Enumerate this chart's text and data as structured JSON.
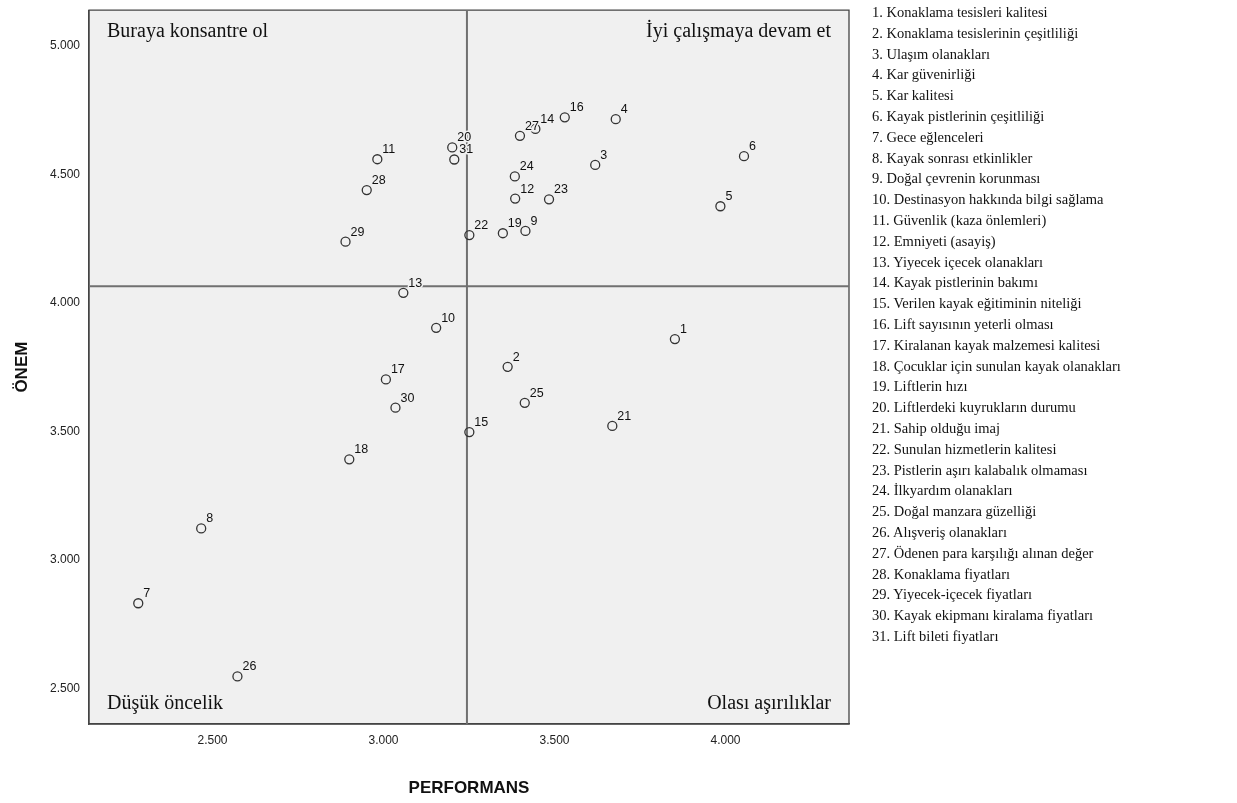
{
  "chart_data": {
    "type": "scatter",
    "xlabel": "PERFORMANS",
    "ylabel": "ÖNEM",
    "x": [
      3.852,
      3.363,
      3.619,
      3.679,
      3.985,
      4.054,
      2.283,
      2.467,
      3.415,
      3.154,
      2.982,
      3.385,
      3.058,
      3.444,
      3.251,
      3.53,
      3.007,
      2.9,
      3.349,
      3.201,
      3.669,
      3.251,
      3.484,
      3.384,
      3.413,
      2.573,
      3.399,
      2.951,
      2.889,
      3.035,
      3.207
    ],
    "series": [
      {
        "color": "#333333",
        "values": [
          3.86,
          3.752,
          4.538,
          4.716,
          4.377,
          4.572,
          2.832,
          3.123,
          4.281,
          3.904,
          4.56,
          4.407,
          4.04,
          4.678,
          3.498,
          4.723,
          3.703,
          3.392,
          4.272,
          4.606,
          3.522,
          4.265,
          4.404,
          4.493,
          3.612,
          2.547,
          4.651,
          4.44,
          4.239,
          3.593,
          4.559
        ]
      }
    ],
    "marker": "circle",
    "grid": false,
    "legend": false,
    "xlim": [
      2.139,
      4.361
    ],
    "ylim": [
      2.362,
      5.14
    ],
    "xticks": [
      {
        "value": 2.5,
        "label": "2.500"
      },
      {
        "value": 3,
        "label": "3.000"
      },
      {
        "value": 3.5,
        "label": "3.500"
      },
      {
        "value": 4,
        "label": "4.000"
      }
    ],
    "yticks": [
      {
        "value": 2.5,
        "label": "2.500"
      },
      {
        "value": 3,
        "label": "3.000"
      },
      {
        "value": 3.5,
        "label": "3.500"
      },
      {
        "value": 4,
        "label": "4.000"
      },
      {
        "value": 4.5,
        "label": "4.500"
      },
      {
        "value": 5,
        "label": "5.000"
      }
    ],
    "ref_lines": [
      {
        "axis": "x",
        "value": 3.244,
        "color": "#707070"
      },
      {
        "axis": "y",
        "value": 4.066,
        "color": "#707070"
      }
    ],
    "annotations": [
      "Buraya konsantre ol",
      "İyi çalışmaya devam et",
      "Düşük öncelik",
      "Olası aşırılıklar",
      {
        "text": "1",
        "x": 3.852,
        "y": 3.86
      },
      {
        "text": "2",
        "x": 3.363,
        "y": 3.752
      },
      {
        "text": "3",
        "x": 3.619,
        "y": 4.538
      },
      {
        "text": "4",
        "x": 3.679,
        "y": 4.716
      },
      {
        "text": "5",
        "x": 3.985,
        "y": 4.377
      },
      {
        "text": "6",
        "x": 4.054,
        "y": 4.572
      },
      {
        "text": "7",
        "x": 2.283,
        "y": 2.832
      },
      {
        "text": "8",
        "x": 2.467,
        "y": 3.123
      },
      {
        "text": "9",
        "x": 3.415,
        "y": 4.281
      },
      {
        "text": "10",
        "x": 3.154,
        "y": 3.904
      },
      {
        "text": "11",
        "x": 2.982,
        "y": 4.56
      },
      {
        "text": "12",
        "x": 3.385,
        "y": 4.407
      },
      {
        "text": "13",
        "x": 3.058,
        "y": 4.04
      },
      {
        "text": "14",
        "x": 3.444,
        "y": 4.678
      },
      {
        "text": "15",
        "x": 3.251,
        "y": 3.498
      },
      {
        "text": "16",
        "x": 3.53,
        "y": 4.723
      },
      {
        "text": "17",
        "x": 3.007,
        "y": 3.703
      },
      {
        "text": "18",
        "x": 2.9,
        "y": 3.392
      },
      {
        "text": "19",
        "x": 3.349,
        "y": 4.272
      },
      {
        "text": "20",
        "x": 3.201,
        "y": 4.606
      },
      {
        "text": "21",
        "x": 3.669,
        "y": 3.522
      },
      {
        "text": "22",
        "x": 3.251,
        "y": 4.265
      },
      {
        "text": "23",
        "x": 3.484,
        "y": 4.404
      },
      {
        "text": "24",
        "x": 3.384,
        "y": 4.493
      },
      {
        "text": "25",
        "x": 3.413,
        "y": 3.612
      },
      {
        "text": "26",
        "x": 2.573,
        "y": 2.547
      },
      {
        "text": "27",
        "x": 3.399,
        "y": 4.651
      },
      {
        "text": "28",
        "x": 2.951,
        "y": 4.44
      },
      {
        "text": "29",
        "x": 2.889,
        "y": 4.239
      },
      {
        "text": "30",
        "x": 3.035,
        "y": 3.593
      },
      {
        "text": "31",
        "x": 3.207,
        "y": 4.559
      },
      "1. Konaklama tesisleri kalitesi",
      "2. Konaklama tesislerinin çeşitliliği",
      "3. Ulaşım olanakları",
      "4. Kar güvenirliği",
      "5. Kar kalitesi",
      "6. Kayak pistlerinin çeşitliliği",
      "7. Gece eğlenceleri",
      "8. Kayak sonrası etkinlikler",
      "9. Doğal çevrenin korunması",
      "10. Destinasyon hakkında bilgi sağlama",
      "11. Güvenlik (kaza önlemleri)",
      "12. Emniyeti (asayiş)",
      "13. Yiyecek içecek olanakları",
      "14. Kayak pistlerinin bakımı",
      "15. Verilen kayak eğitiminin niteliği",
      "16. Lift sayısının yeterli olması",
      "17. Kiralanan kayak malzemesi kalitesi",
      "18. Çocuklar için sunulan kayak olanakları",
      "19. Liftlerin hızı",
      "20. Liftlerdeki kuyrukların durumu",
      "21. Sahip olduğu imaj",
      "22. Sunulan hizmetlerin kalitesi",
      "23. Pistlerin aşırı kalabalık olmaması",
      "24. İlkyardım olanakları",
      "25. Doğal manzara güzelliği",
      "26. Alışveriş olanakları",
      "27. Ödenen para karşılığı alınan değer",
      "28. Konaklama fiyatları",
      "29. Yiyecek-içecek fiyatları",
      "30. Kayak ekipmanı kiralama fiyatları",
      "31. Lift bileti fiyatları"
    ]
  }
}
